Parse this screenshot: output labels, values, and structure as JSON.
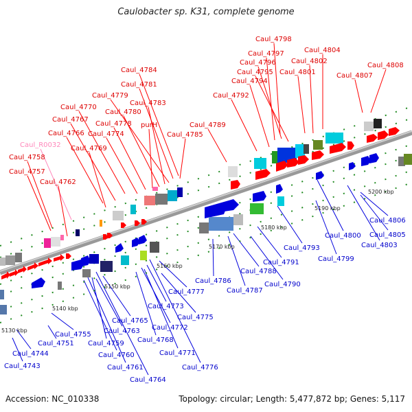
{
  "title": "Caulobacter sp. K31, complete genome",
  "footer": {
    "accession": "Accession: NC_010338",
    "stats": "Topology: circular; Length: 5,477,872 bp; Genes: 5,117"
  },
  "colors": {
    "forward": "#ff0000",
    "reverse": "#0000dd",
    "rna": "#ff88bb",
    "axis": "#888888",
    "ticks": "#228b22"
  },
  "scale_labels": [
    "5130 kbp",
    "5140 kbp",
    "5150 kbp",
    "5160 kbp",
    "5170 kbp",
    "5180 kbp",
    "5190 kbp",
    "5200 kbp"
  ],
  "top_labels": [
    "Caul_4798",
    "Caul_4804",
    "Caul_4797",
    "Caul_4796",
    "Caul_4802",
    "Caul_4808",
    "Caul_4795",
    "Caul_4801",
    "Caul_4807",
    "Caul_4784",
    "Caul_4794",
    "Caul_4781",
    "Caul_4792",
    "Caul_4779",
    "Caul_4783",
    "Caul_4770",
    "Caul_4780",
    "Caul_4767",
    "Caul_4778",
    "purH",
    "Caul_4789",
    "Caul_4766",
    "Caul_4774",
    "Caul_4785",
    "Caul_R0032",
    "Caul_4769",
    "Caul_4758",
    "Caul_4757",
    "Caul_4762"
  ],
  "bottom_labels": [
    "Caul_4806",
    "Caul_4800",
    "Caul_4805",
    "Caul_4803",
    "Caul_4793",
    "Caul_4799",
    "Caul_4791",
    "Caul_4788",
    "Caul_4790",
    "Caul_4786",
    "Caul_4787",
    "Caul_4777",
    "Caul_4773",
    "Caul_4775",
    "Caul_4772",
    "Caul_4765",
    "Caul_4763",
    "Caul_4768",
    "Caul_4755",
    "Caul_4751",
    "Caul_4759",
    "Caul_4771",
    "Caul_4744",
    "Caul_4760",
    "Caul_4743",
    "Caul_4761",
    "Caul_4776",
    "Caul_4764"
  ]
}
